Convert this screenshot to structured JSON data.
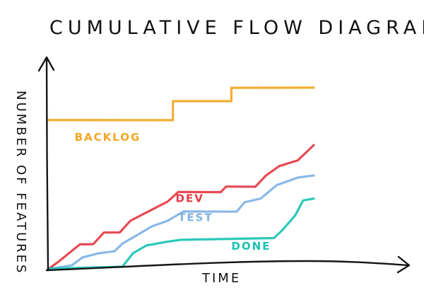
{
  "chart_data": {
    "type": "line",
    "title": "CUMULATIVE FLOW DIAGRAM",
    "xlabel": "TIME",
    "ylabel": "NUMBER OF FEATURES",
    "xlim": [
      0,
      100
    ],
    "ylim": [
      0,
      100
    ],
    "grid": false,
    "legend": "none",
    "series": [
      {
        "name": "BACKLOG",
        "color": "#f5a623",
        "label_anchor": [
          10,
          67
        ],
        "points": [
          [
            0,
            78
          ],
          [
            47,
            78
          ],
          [
            47,
            88
          ],
          [
            69,
            88
          ],
          [
            69,
            95
          ],
          [
            100,
            95
          ]
        ]
      },
      {
        "name": "DEV",
        "color": "#e53b45",
        "label_anchor": [
          48,
          35
        ],
        "points": [
          [
            0,
            0
          ],
          [
            4,
            4
          ],
          [
            12,
            13
          ],
          [
            17,
            13
          ],
          [
            21,
            19
          ],
          [
            27,
            19
          ],
          [
            31,
            25
          ],
          [
            38,
            30
          ],
          [
            45,
            35
          ],
          [
            49,
            40
          ],
          [
            65,
            40
          ],
          [
            67,
            43
          ],
          [
            78,
            43
          ],
          [
            82,
            49
          ],
          [
            87,
            54
          ],
          [
            94,
            57
          ],
          [
            100,
            65
          ]
        ]
      },
      {
        "name": "TEST",
        "color": "#7fb2e5",
        "label_anchor": [
          49,
          25
        ],
        "points": [
          [
            0,
            0
          ],
          [
            9,
            2
          ],
          [
            13,
            6
          ],
          [
            19,
            8
          ],
          [
            25,
            9
          ],
          [
            28,
            13
          ],
          [
            33,
            17
          ],
          [
            39,
            22
          ],
          [
            45,
            25
          ],
          [
            51,
            30
          ],
          [
            71,
            30
          ],
          [
            74,
            35
          ],
          [
            80,
            37
          ],
          [
            86,
            44
          ],
          [
            94,
            48
          ],
          [
            100,
            49
          ]
        ]
      },
      {
        "name": "DONE",
        "color": "#19c3b3",
        "label_anchor": [
          69,
          10
        ],
        "points": [
          [
            0,
            0
          ],
          [
            28,
            1
          ],
          [
            32,
            8
          ],
          [
            37,
            12
          ],
          [
            45,
            14
          ],
          [
            50,
            15
          ],
          [
            85,
            16
          ],
          [
            88,
            20
          ],
          [
            93,
            28
          ],
          [
            96,
            36
          ],
          [
            100,
            37
          ]
        ]
      }
    ]
  }
}
